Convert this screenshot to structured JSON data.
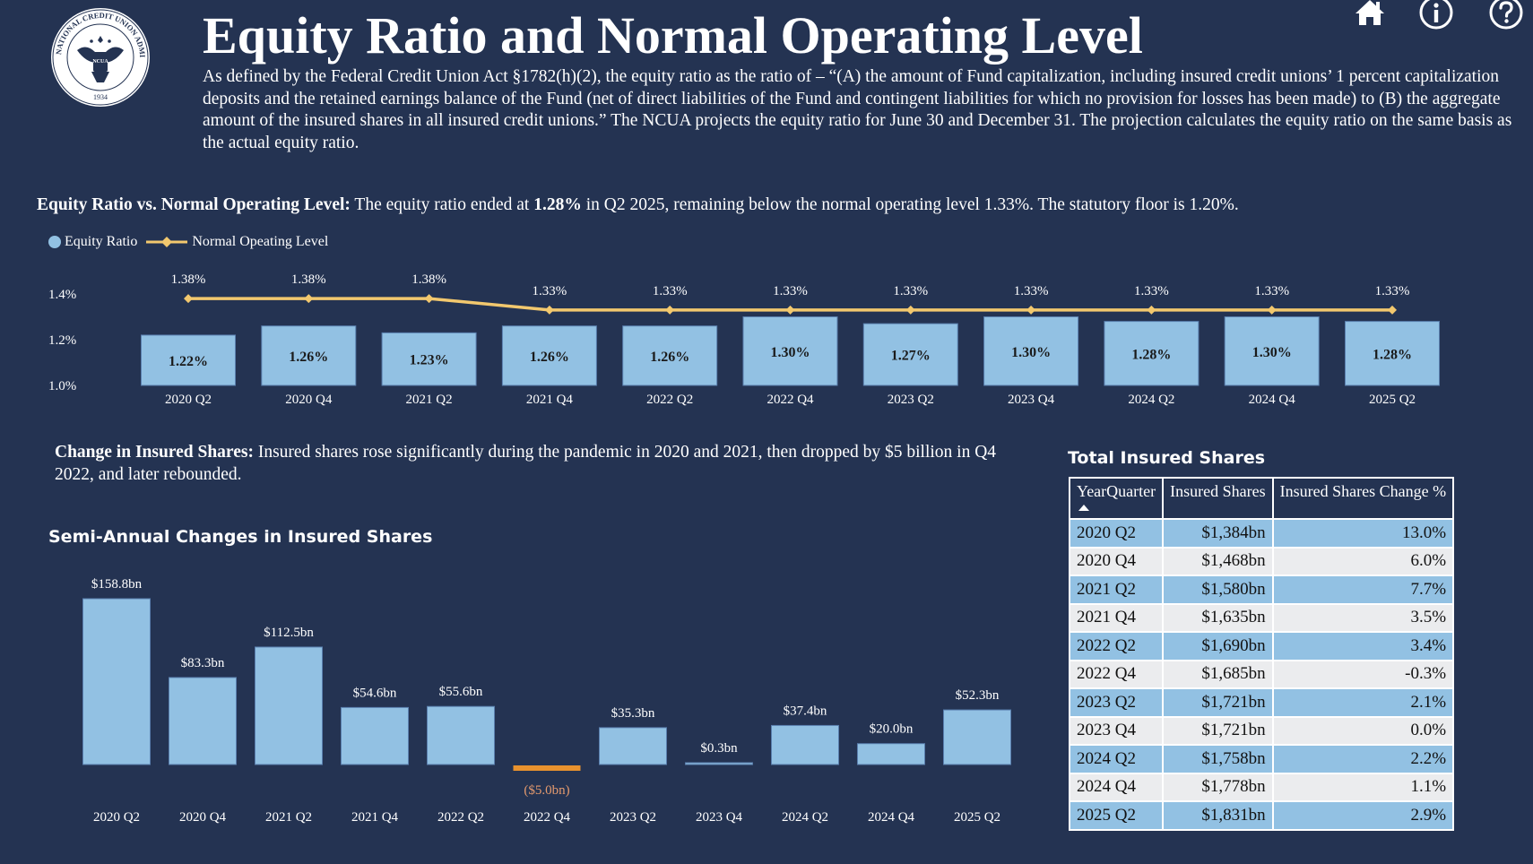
{
  "header": {
    "title": "Equity Ratio and Normal Operating Level",
    "logo_text": {
      "top": "NATIONAL CREDIT UNION ADMINISTRATION",
      "year": "1934",
      "badge": "NCUA"
    },
    "intro": "As defined by the Federal Credit Union Act §1782(h)(2), the equity ratio as the ratio of – “(A) the amount of Fund capitalization, including insured credit unions’ 1 percent capitalization deposits and the retained earnings balance of the Fund (net of direct liabilities of the Fund and contingent liabilities for which no provision for losses has been made) to (B) the aggregate amount of the insured shares in all insured credit unions.” The NCUA projects the equity ratio for June 30 and December 31. The projection calculates the equity ratio on the same basis as the actual equity ratio.",
    "icons": [
      "home-icon",
      "info-icon",
      "help-icon"
    ]
  },
  "equity_section": {
    "summary_label": "Equity Ratio vs. Normal Operating Level:",
    "summary_pre": " The equity ratio ended at ",
    "summary_bold": "1.28%",
    "summary_post": " in Q2 2025, remaining below the normal operating level 1.33%. The statutory floor is 1.20%.",
    "legend": {
      "bar": "Equity Ratio",
      "line": "Normal Opeating Level"
    }
  },
  "shares_section": {
    "summary_label": "Change in Insured Shares:",
    "summary_text": " Insured shares rose significantly during the pandemic in 2020 and 2021, then dropped by $5 billion in Q4 2022, and later rebounded.",
    "chart_title": "Semi-Annual Changes in Insured Shares"
  },
  "table": {
    "title": "Total Insured Shares",
    "columns": [
      "YearQuarter",
      "Insured Shares",
      "Insured Shares Change %"
    ],
    "sort": {
      "column": "YearQuarter",
      "direction": "ascending"
    },
    "rows": [
      [
        "2020 Q2",
        "$1,384bn",
        "13.0%"
      ],
      [
        "2020 Q4",
        "$1,468bn",
        "6.0%"
      ],
      [
        "2021 Q2",
        "$1,580bn",
        "7.7%"
      ],
      [
        "2021 Q4",
        "$1,635bn",
        "3.5%"
      ],
      [
        "2022 Q2",
        "$1,690bn",
        "3.4%"
      ],
      [
        "2022 Q4",
        "$1,685bn",
        "-0.3%"
      ],
      [
        "2023 Q2",
        "$1,721bn",
        "2.1%"
      ],
      [
        "2023 Q4",
        "$1,721bn",
        "0.0%"
      ],
      [
        "2024 Q2",
        "$1,758bn",
        "2.2%"
      ],
      [
        "2024 Q4",
        "$1,778bn",
        "1.1%"
      ],
      [
        "2025 Q2",
        "$1,831bn",
        "2.9%"
      ]
    ]
  },
  "colors": {
    "background": "#243352",
    "bar": "#92c1e3",
    "line": "#f2c86e",
    "negative": "#e8922e",
    "negative_label": "#e49a6e",
    "text": "#ffffff"
  },
  "chart_data": [
    {
      "type": "bar+line",
      "title": "Equity Ratio vs. Normal Operating Level",
      "categories": [
        "2020 Q2",
        "2020 Q4",
        "2021 Q2",
        "2021 Q4",
        "2022 Q2",
        "2022 Q4",
        "2023 Q2",
        "2023 Q4",
        "2024 Q2",
        "2024 Q4",
        "2025 Q2"
      ],
      "series": [
        {
          "name": "Equity Ratio",
          "kind": "bar",
          "values": [
            1.22,
            1.26,
            1.23,
            1.26,
            1.26,
            1.3,
            1.27,
            1.3,
            1.28,
            1.3,
            1.28
          ],
          "labels": [
            "1.22%",
            "1.26%",
            "1.23%",
            "1.26%",
            "1.26%",
            "1.30%",
            "1.27%",
            "1.30%",
            "1.28%",
            "1.30%",
            "1.28%"
          ]
        },
        {
          "name": "Normal Opeating Level",
          "kind": "line",
          "values": [
            1.38,
            1.38,
            1.38,
            1.33,
            1.33,
            1.33,
            1.33,
            1.33,
            1.33,
            1.33,
            1.33
          ],
          "labels": [
            "1.38%",
            "1.38%",
            "1.38%",
            "1.33%",
            "1.33%",
            "1.33%",
            "1.33%",
            "1.33%",
            "1.33%",
            "1.33%",
            "1.33%"
          ]
        }
      ],
      "yticks": [
        1.0,
        1.2,
        1.4
      ],
      "ytick_labels": [
        "1.0%",
        "1.2%",
        "1.4%"
      ],
      "ylim": [
        1.0,
        1.45
      ],
      "xlabel": "",
      "ylabel": "",
      "legend": "top-left",
      "grid": false
    },
    {
      "type": "bar",
      "title": "Semi-Annual Changes in Insured Shares",
      "categories": [
        "2020 Q2",
        "2020 Q4",
        "2021 Q2",
        "2021 Q4",
        "2022 Q2",
        "2022 Q4",
        "2023 Q2",
        "2023 Q4",
        "2024 Q2",
        "2024 Q4",
        "2025 Q2"
      ],
      "values": [
        158.8,
        83.3,
        112.5,
        54.6,
        55.6,
        -5.0,
        35.3,
        0.3,
        37.4,
        20.0,
        52.3
      ],
      "labels": [
        "$158.8bn",
        "$83.3bn",
        "$112.5bn",
        "$54.6bn",
        "$55.6bn",
        "($5.0bn)",
        "$35.3bn",
        "$0.3bn",
        "$37.4bn",
        "$20.0bn",
        "$52.3bn"
      ],
      "unit": "$bn",
      "xlabel": "",
      "ylabel": "",
      "grid": false
    }
  ]
}
